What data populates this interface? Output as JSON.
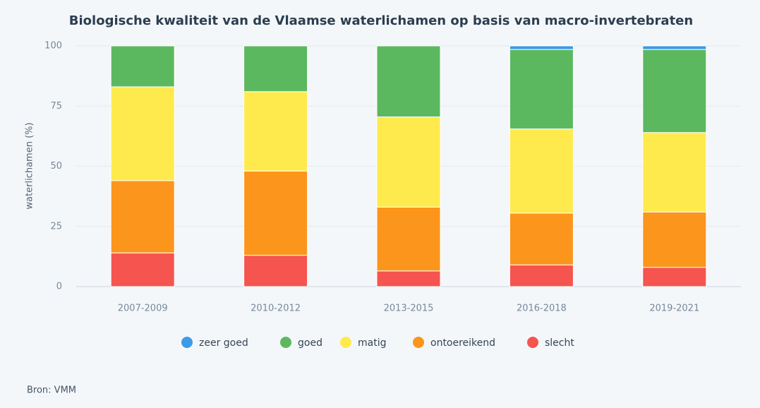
{
  "chart_data": {
    "type": "stacked_bar",
    "title": "Biologische kwaliteit van de Vlaamse waterlichamen op basis van macro-invertebraten",
    "y_label": "waterlichamen (%)",
    "source": "Bron: VMM",
    "categories": [
      "2007-2009",
      "2010-2012",
      "2013-2015",
      "2016-2018",
      "2019-2021"
    ],
    "series": [
      {
        "name": "zeer goed",
        "color": "#3d9ae8",
        "values": [
          0,
          0,
          0,
          1.5,
          1.5
        ]
      },
      {
        "name": "goed",
        "color": "#5cb85f",
        "values": [
          17,
          19,
          29.5,
          33,
          34.5
        ]
      },
      {
        "name": "matig",
        "color": "#ffea4d",
        "values": [
          39,
          33,
          37.5,
          35,
          33
        ]
      },
      {
        "name": "ontoereikend",
        "color": "#fc951c",
        "values": [
          30,
          35,
          26.5,
          21.5,
          23
        ]
      },
      {
        "name": "slecht",
        "color": "#f5544f",
        "values": [
          14,
          13,
          6.5,
          9,
          8
        ]
      }
    ],
    "ylim": [
      0,
      100
    ],
    "yticks": [
      0,
      25,
      50,
      75,
      100
    ],
    "grid": true
  }
}
